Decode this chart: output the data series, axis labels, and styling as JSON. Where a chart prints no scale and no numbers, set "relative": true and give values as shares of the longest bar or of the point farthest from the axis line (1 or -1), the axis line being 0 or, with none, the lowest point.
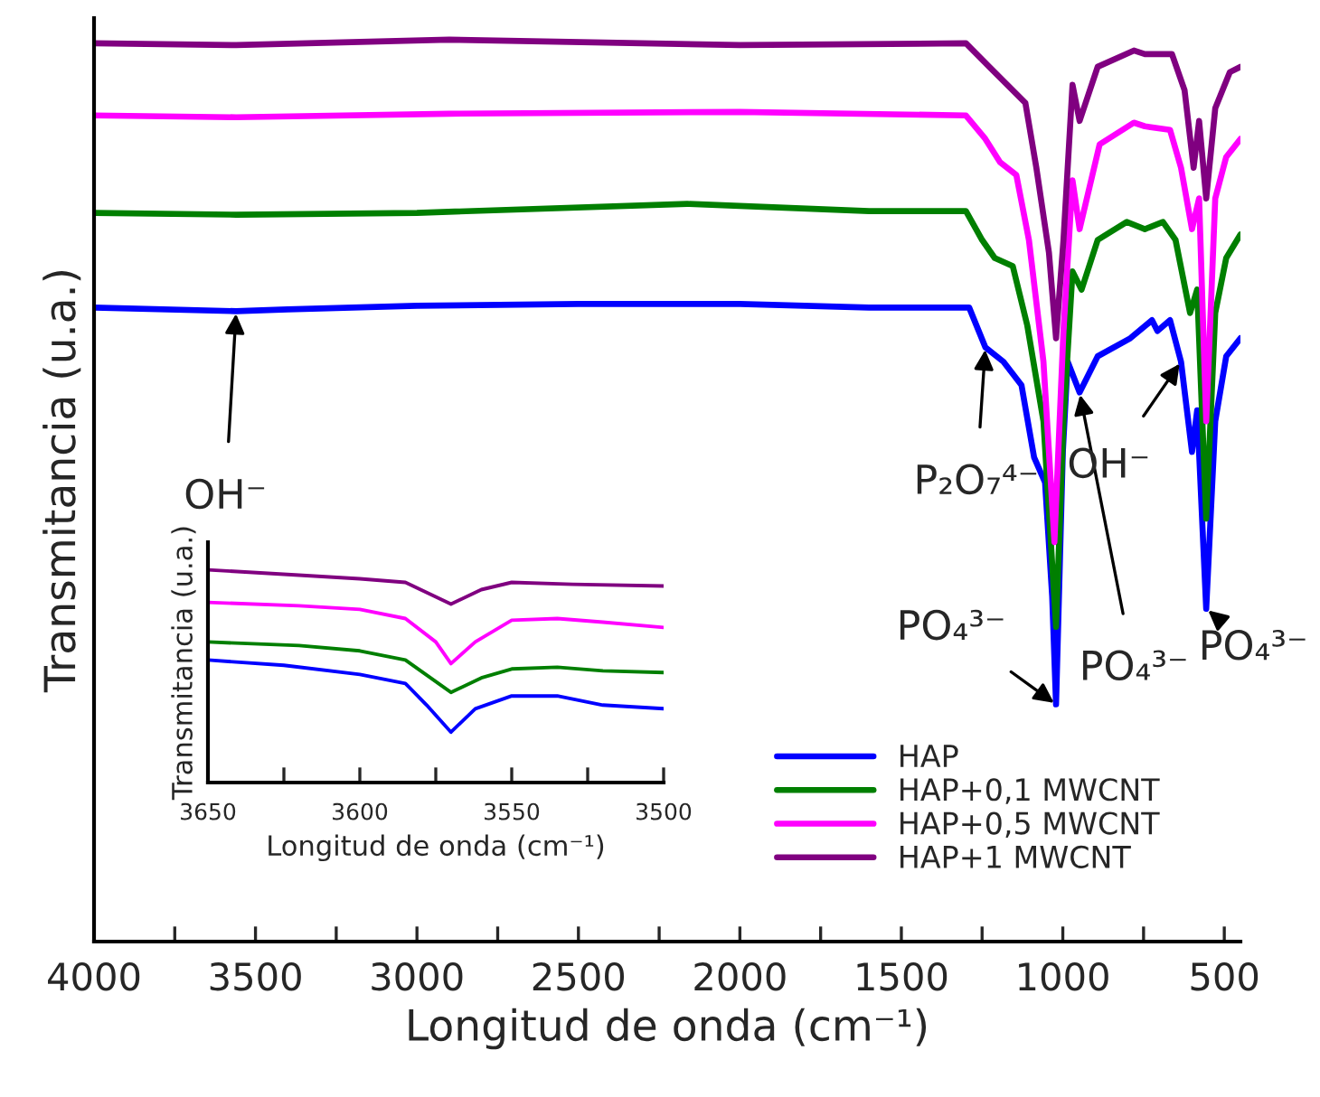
{
  "chart_data": [
    {
      "type": "line",
      "relative": true,
      "xlabel": "Longitud de onda (cm⁻¹)",
      "ylabel": "Transmitancia (u.a.)",
      "xlim": [
        4000,
        450
      ],
      "xticks": [
        4000,
        {
          "value": 3750,
          "label": null
        },
        3500,
        {
          "value": 3250,
          "label": null
        },
        3000,
        {
          "value": 2750,
          "label": null
        },
        2500,
        {
          "value": 2250,
          "label": null
        },
        2000,
        {
          "value": 1750,
          "label": null
        },
        1500,
        {
          "value": 1250,
          "label": null
        },
        1000,
        {
          "value": 750,
          "label": null
        },
        500
      ],
      "tick_labels": "x",
      "legend": "bottom right",
      "series": [
        {
          "name": "HAP",
          "color": "#0000ff",
          "x": [
            4000,
            3560,
            3400,
            3000,
            2500,
            2000,
            1600,
            1400,
            1290,
            1240,
            1184,
            1128,
            1089,
            1055,
            1033,
            1021,
            1000,
            985,
            948,
            892,
            791,
            724,
            707,
            668,
            634,
            600,
            584,
            556,
            528,
            494,
            450
          ],
          "values": [
            0.703,
            0.699,
            0.701,
            0.705,
            0.707,
            0.707,
            0.703,
            0.703,
            0.703,
            0.659,
            0.643,
            0.617,
            0.537,
            0.509,
            0.383,
            0.263,
            0.543,
            0.643,
            0.609,
            0.649,
            0.669,
            0.689,
            0.677,
            0.689,
            0.643,
            0.543,
            0.589,
            0.369,
            0.577,
            0.649,
            0.669
          ]
        },
        {
          "name": "HAP+0,1 MWCNT",
          "color": "#007f00",
          "x": [
            4000,
            3560,
            3000,
            2163,
            1600,
            1300,
            1250,
            1211,
            1155,
            1110,
            1060,
            1021,
            998,
            970,
            942,
            892,
            802,
            746,
            690,
            651,
            606,
            584,
            556,
            528,
            494,
            450
          ],
          "values": [
            0.808,
            0.806,
            0.808,
            0.818,
            0.81,
            0.81,
            0.778,
            0.758,
            0.749,
            0.683,
            0.577,
            0.349,
            0.577,
            0.743,
            0.723,
            0.778,
            0.798,
            0.79,
            0.798,
            0.778,
            0.697,
            0.723,
            0.469,
            0.697,
            0.758,
            0.784
          ]
        },
        {
          "name": "HAP+0,5 MWCNT",
          "color": "#ff00ff",
          "x": [
            4000,
            3560,
            2900,
            2000,
            1300,
            1240,
            1194,
            1144,
            1105,
            1060,
            1026,
            998,
            970,
            948,
            886,
            780,
            746,
            668,
            634,
            600,
            578,
            556,
            528,
            494,
            450
          ],
          "values": [
            0.916,
            0.914,
            0.918,
            0.92,
            0.916,
            0.89,
            0.864,
            0.85,
            0.778,
            0.643,
            0.443,
            0.677,
            0.844,
            0.79,
            0.884,
            0.908,
            0.904,
            0.9,
            0.858,
            0.79,
            0.824,
            0.577,
            0.824,
            0.87,
            0.89
          ]
        },
        {
          "name": "HAP+1 MWCNT",
          "color": "#800080",
          "x": [
            4000,
            3560,
            2900,
            2000,
            1300,
            1228,
            1172,
            1116,
            1082,
            1043,
            1021,
            998,
            970,
            948,
            892,
            780,
            746,
            662,
            623,
            595,
            578,
            556,
            528,
            483,
            450
          ],
          "values": [
            0.996,
            0.994,
            1.0,
            0.994,
            0.996,
            0.97,
            0.95,
            0.93,
            0.858,
            0.764,
            0.669,
            0.778,
            0.95,
            0.91,
            0.97,
            0.988,
            0.984,
            0.984,
            0.944,
            0.858,
            0.91,
            0.824,
            0.924,
            0.964,
            0.97
          ]
        }
      ],
      "annotations": [
        {
          "text": "OH⁻",
          "x": 3560,
          "y": 0.699
        },
        {
          "text": "P₂O₇⁴⁻",
          "x": 1240,
          "y": 0.659
        },
        {
          "text": "PO₄³⁻",
          "x": 1021,
          "y": 0.263
        },
        {
          "text": "PO₄³⁻",
          "x": 948,
          "y": 0.609
        },
        {
          "text": "OH⁻",
          "x": 634,
          "y": 0.643
        },
        {
          "text": "PO₄³⁻",
          "x": 556,
          "y": 0.369
        }
      ]
    },
    {
      "type": "line",
      "relative": true,
      "xlabel": "Longitud de onda (cm⁻¹)",
      "ylabel": "Transmitancia (u.a.)",
      "xlim": [
        3650,
        3500
      ],
      "xticks": [
        3650,
        {
          "value": 3625,
          "label": null
        },
        3600,
        {
          "value": 3575,
          "label": null
        },
        3550,
        {
          "value": 3525,
          "label": null
        },
        3500
      ],
      "tick_labels": "x",
      "series": [
        {
          "color": "#0000ff",
          "x": [
            3650,
            3625,
            3600,
            3585,
            3578,
            3570,
            3562,
            3550,
            3535,
            3520,
            3500
          ],
          "values": [
            0.576,
            0.551,
            0.508,
            0.466,
            0.364,
            0.237,
            0.347,
            0.407,
            0.407,
            0.364,
            0.347
          ]
        },
        {
          "color": "#007f00",
          "x": [
            3650,
            3620,
            3600,
            3585,
            3570,
            3560,
            3550,
            3535,
            3520,
            3500
          ],
          "values": [
            0.661,
            0.644,
            0.619,
            0.576,
            0.424,
            0.492,
            0.534,
            0.542,
            0.525,
            0.517
          ]
        },
        {
          "color": "#ff00ff",
          "x": [
            3650,
            3620,
            3600,
            3585,
            3575,
            3570,
            3562,
            3550,
            3535,
            3520,
            3500
          ],
          "values": [
            0.847,
            0.831,
            0.814,
            0.771,
            0.661,
            0.559,
            0.661,
            0.763,
            0.771,
            0.754,
            0.729
          ]
        },
        {
          "color": "#800080",
          "x": [
            3650,
            3620,
            3600,
            3585,
            3570,
            3560,
            3550,
            3530,
            3500
          ],
          "values": [
            1.0,
            0.975,
            0.958,
            0.941,
            0.839,
            0.907,
            0.941,
            0.932,
            0.924
          ]
        }
      ]
    }
  ]
}
